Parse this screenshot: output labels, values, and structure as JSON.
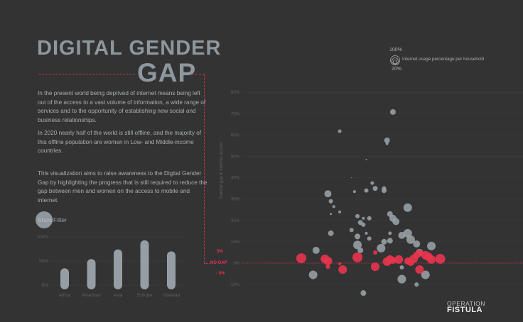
{
  "header": {
    "title_line1": "DIGITAL GENDER",
    "title_line2": "GAP"
  },
  "intro": {
    "paragraphs": [
      "In the present world being deprived of internet means being left out of the access to a vast volume of information, a wide range of services and to the opportunity of establishing new social and business relationships.",
      "In 2020 nearly half of the world is still offline, and the majority of this offline population are women in Low- and Middle-income countries.",
      "This visualization aims to raise awareness to the Digital Gender Gap by highlighting the progress that is still required to reduce the gap between men and women on the access to mobile and internet."
    ]
  },
  "filter": {
    "show_label": "Show",
    "filter_label": "Filter"
  },
  "legend": {
    "top": "100%",
    "bottom": "20%",
    "text": "Internet usage percentage per household",
    "icon": "concentric-circles-icon"
  },
  "annotations": {
    "plus": "5%",
    "zero": "NO GAP",
    "minus": "- 5%"
  },
  "logo": {
    "line1": "OPERATION",
    "line2": "FISTULA"
  },
  "colors": {
    "background": "#333333",
    "accent": "#e8344e",
    "neutral": "#969ea5"
  },
  "chart_data": [
    {
      "type": "bar",
      "categories": [
        "Africa",
        "Americas",
        "Asia",
        "Europe",
        "Oceania"
      ],
      "values": [
        35,
        54,
        74,
        93,
        70
      ],
      "yticks": [
        "0%",
        "50%",
        "100%"
      ],
      "ylim": [
        0,
        100
      ],
      "grid": true
    },
    {
      "type": "scatter",
      "ylabel": "Gender gap in internet access",
      "yticks": [
        "-10%",
        "0%",
        "10%",
        "20%",
        "30%",
        "40%",
        "50%",
        "60%",
        "70%",
        "80%"
      ],
      "ylim": [
        -10,
        80
      ],
      "grid": true,
      "size_encoding": "Internet usage percentage per household",
      "series": [
        {
          "color": "#969ea5",
          "points": [
            {
              "x": 56,
              "y": 70.8,
              "size": 57
            },
            {
              "x": 38,
              "y": 61.8,
              "size": 36
            },
            {
              "x": 54,
              "y": 57.5,
              "size": 57
            },
            {
              "x": 54,
              "y": 56,
              "size": 29
            },
            {
              "x": 47,
              "y": 48.5,
              "size": 14
            },
            {
              "x": 42,
              "y": 40,
              "size": 8
            },
            {
              "x": 49,
              "y": 37.5,
              "size": 36
            },
            {
              "x": 50,
              "y": 35,
              "size": 50
            },
            {
              "x": 53,
              "y": 34,
              "size": 50
            },
            {
              "x": 47,
              "y": 34,
              "size": 43
            },
            {
              "x": 34,
              "y": 32.5,
              "size": 71
            },
            {
              "x": 43,
              "y": 33.5,
              "size": 29
            },
            {
              "x": 53,
              "y": 35,
              "size": 43
            },
            {
              "x": 35,
              "y": 29,
              "size": 43
            },
            {
              "x": 38,
              "y": 24,
              "size": 29
            },
            {
              "x": 61,
              "y": 26,
              "size": 86
            },
            {
              "x": 36,
              "y": 26.5,
              "size": 29
            },
            {
              "x": 35,
              "y": 23,
              "size": 21
            },
            {
              "x": 46,
              "y": 21,
              "size": 29
            },
            {
              "x": 48,
              "y": 21,
              "size": 43
            },
            {
              "x": 55,
              "y": 23,
              "size": 57
            },
            {
              "x": 56,
              "y": 21,
              "size": 71
            },
            {
              "x": 57,
              "y": 19.5,
              "size": 71
            },
            {
              "x": 44,
              "y": 22,
              "size": 43
            },
            {
              "x": 45,
              "y": 19,
              "size": 50
            },
            {
              "x": 46,
              "y": 18,
              "size": 43
            },
            {
              "x": 35,
              "y": 14,
              "size": 57
            },
            {
              "x": 42,
              "y": 15.5,
              "size": 43
            },
            {
              "x": 44,
              "y": 12.5,
              "size": 57
            },
            {
              "x": 47,
              "y": 14,
              "size": 29
            },
            {
              "x": 48,
              "y": 11.5,
              "size": 43
            },
            {
              "x": 55,
              "y": 14,
              "size": 36
            },
            {
              "x": 55,
              "y": 10.5,
              "size": 57
            },
            {
              "x": 53,
              "y": 10,
              "size": 57
            },
            {
              "x": 59,
              "y": 13,
              "size": 71
            },
            {
              "x": 61,
              "y": 14,
              "size": 86
            },
            {
              "x": 62,
              "y": 11,
              "size": 86
            },
            {
              "x": 64,
              "y": 9,
              "size": 71
            },
            {
              "x": 44,
              "y": 8.5,
              "size": 86
            },
            {
              "x": 45,
              "y": 6,
              "size": 57
            },
            {
              "x": 52,
              "y": 7,
              "size": 86
            },
            {
              "x": 65,
              "y": 5,
              "size": 71
            },
            {
              "x": 69,
              "y": 8,
              "size": 86
            },
            {
              "x": 30,
              "y": 6,
              "size": 71
            },
            {
              "x": 29,
              "y": -5.5,
              "size": 86
            },
            {
              "x": 46,
              "y": -14,
              "size": 57
            },
            {
              "x": 59,
              "y": -7.5,
              "size": 86
            },
            {
              "x": 67,
              "y": -5.5,
              "size": 86
            },
            {
              "x": 64,
              "y": -10,
              "size": 43
            },
            {
              "x": 59,
              "y": -2,
              "size": 43
            }
          ]
        },
        {
          "color": "#e8344e",
          "points": [
            {
              "x": 25,
              "y": 2.3,
              "size": 100
            },
            {
              "x": 33,
              "y": 2,
              "size": 86
            },
            {
              "x": 34,
              "y": 1,
              "size": 86
            },
            {
              "x": 34,
              "y": -1.7,
              "size": 43
            },
            {
              "x": 38,
              "y": -0.3,
              "size": 29
            },
            {
              "x": 39,
              "y": -3,
              "size": 86
            },
            {
              "x": 44,
              "y": 2.7,
              "size": 100
            },
            {
              "x": 50,
              "y": 5,
              "size": 43
            },
            {
              "x": 50,
              "y": -1.7,
              "size": 86
            },
            {
              "x": 54,
              "y": 0.7,
              "size": 86
            },
            {
              "x": 55,
              "y": 1.7,
              "size": 86
            },
            {
              "x": 56,
              "y": 1.3,
              "size": 71
            },
            {
              "x": 58,
              "y": 1.7,
              "size": 86
            },
            {
              "x": 62,
              "y": 0.3,
              "size": 71
            },
            {
              "x": 63,
              "y": 2,
              "size": 86
            },
            {
              "x": 64,
              "y": 3.7,
              "size": 71
            },
            {
              "x": 65,
              "y": 4.7,
              "size": 71
            },
            {
              "x": 67,
              "y": 3.7,
              "size": 86
            },
            {
              "x": 68,
              "y": 3,
              "size": 86
            },
            {
              "x": 65,
              "y": -3,
              "size": 86
            },
            {
              "x": 72,
              "y": 2,
              "size": 100
            },
            {
              "x": 69,
              "y": 1.7,
              "size": 86
            },
            {
              "x": 61,
              "y": 1,
              "size": 71
            }
          ]
        }
      ]
    }
  ]
}
